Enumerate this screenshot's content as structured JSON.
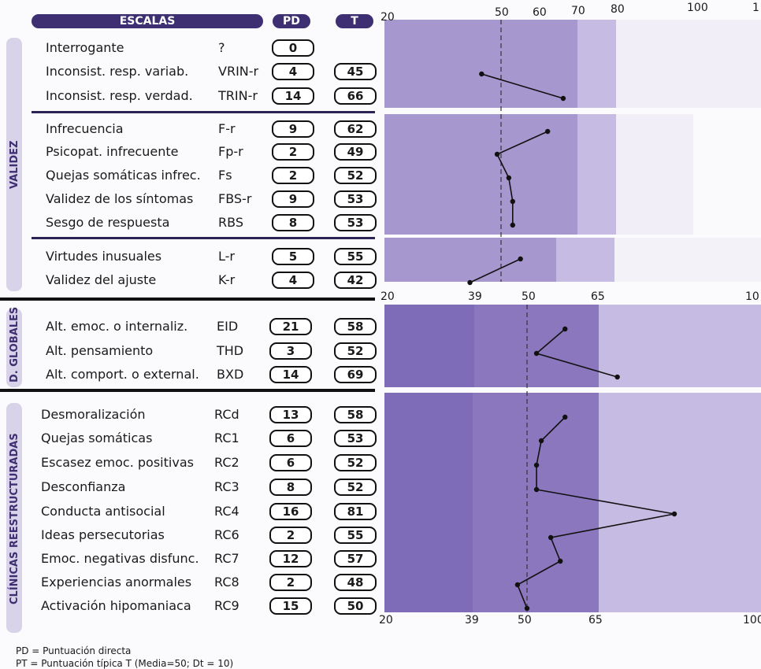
{
  "header": {
    "escalas": "ESCALAS",
    "pd": "PD",
    "t": "T"
  },
  "sections": {
    "validez": "VALIDEZ",
    "globales": "D. GLOBALES",
    "clinicas": "CLÍNICAS REESTRUCTURADAS"
  },
  "rows": [
    {
      "name": "Interrogante",
      "code": "?",
      "pd": "0",
      "t": ""
    },
    {
      "name": "Inconsist. resp. variab.",
      "code": "VRIN-r",
      "pd": "4",
      "t": "45"
    },
    {
      "name": "Inconsist. resp. verdad.",
      "code": "TRIN-r",
      "pd": "14",
      "t": "66"
    },
    {
      "name": "Infrecuencia",
      "code": "F-r",
      "pd": "9",
      "t": "62"
    },
    {
      "name": "Psicopat. infrecuente",
      "code": "Fp-r",
      "pd": "2",
      "t": "49"
    },
    {
      "name": "Quejas somáticas infrec.",
      "code": "Fs",
      "pd": "2",
      "t": "52"
    },
    {
      "name": "Validez de los síntomas",
      "code": "FBS-r",
      "pd": "9",
      "t": "53"
    },
    {
      "name": "Sesgo de respuesta",
      "code": "RBS",
      "pd": "8",
      "t": "53"
    },
    {
      "name": "Virtudes inusuales",
      "code": "L-r",
      "pd": "5",
      "t": "55"
    },
    {
      "name": "Validez del ajuste",
      "code": "K-r",
      "pd": "4",
      "t": "42"
    },
    {
      "name": "Alt. emoc. o internaliz.",
      "code": "EID",
      "pd": "21",
      "t": "58"
    },
    {
      "name": "Alt. pensamiento",
      "code": "THD",
      "pd": "3",
      "t": "52"
    },
    {
      "name": "Alt. comport. o external.",
      "code": "BXD",
      "pd": "14",
      "t": "69"
    },
    {
      "name": "Desmoralización",
      "code": "RCd",
      "pd": "13",
      "t": "58"
    },
    {
      "name": "Quejas somáticas",
      "code": "RC1",
      "pd": "6",
      "t": "53"
    },
    {
      "name": "Escasez emoc. positivas",
      "code": "RC2",
      "pd": "6",
      "t": "52"
    },
    {
      "name": "Desconfianza",
      "code": "RC3",
      "pd": "8",
      "t": "52"
    },
    {
      "name": "Conducta antisocial",
      "code": "RC4",
      "pd": "16",
      "t": "81"
    },
    {
      "name": "Ideas persecutorias",
      "code": "RC6",
      "pd": "2",
      "t": "55"
    },
    {
      "name": "Emoc. negativas disfunc.",
      "code": "RC7",
      "pd": "12",
      "t": "57"
    },
    {
      "name": "Experiencias anormales",
      "code": "RC8",
      "pd": "2",
      "t": "48"
    },
    {
      "name": "Activación hipomaniaca",
      "code": "RC9",
      "pd": "15",
      "t": "50"
    }
  ],
  "axis_top": [
    "20",
    "50",
    "60",
    "70",
    "80",
    "100",
    "1"
  ],
  "axis_mid": [
    "20",
    "39",
    "50",
    "65",
    "10"
  ],
  "axis_bottom": [
    "20",
    "39",
    "50",
    "65",
    "100"
  ],
  "footer": {
    "line1": "PD = Puntuación directa",
    "line2": "PT = Puntuación típica T (Media=50; Dt = 10)"
  },
  "colors": {
    "header": "#3d2f72",
    "plot_dark": "#8a77be",
    "plot_mid": "#a797cf",
    "plot_light": "#c6bbe2"
  },
  "chart_data": [
    {
      "type": "line",
      "series": [
        {
          "categories": [
            "VRIN-r",
            "TRIN-r"
          ],
          "values": [
            45,
            66
          ]
        }
      ],
      "xlim": [
        20,
        100
      ]
    },
    {
      "type": "line",
      "series": [
        {
          "categories": [
            "F-r",
            "Fp-r",
            "Fs",
            "FBS-r",
            "RBS"
          ],
          "values": [
            62,
            49,
            52,
            53,
            53
          ]
        }
      ],
      "xlim": [
        20,
        100
      ]
    },
    {
      "type": "line",
      "series": [
        {
          "categories": [
            "L-r",
            "K-r"
          ],
          "values": [
            55,
            42
          ]
        }
      ],
      "xlim": [
        20,
        100
      ]
    },
    {
      "type": "line",
      "series": [
        {
          "categories": [
            "EID",
            "THD",
            "BXD"
          ],
          "values": [
            58,
            52,
            69
          ]
        }
      ],
      "xlim": [
        20,
        100
      ]
    },
    {
      "type": "line",
      "series": [
        {
          "categories": [
            "RCd",
            "RC1",
            "RC2",
            "RC3",
            "RC4",
            "RC6",
            "RC7",
            "RC8",
            "RC9"
          ],
          "values": [
            58,
            53,
            52,
            52,
            81,
            55,
            57,
            48,
            50
          ]
        }
      ],
      "xlim": [
        20,
        100
      ]
    }
  ]
}
